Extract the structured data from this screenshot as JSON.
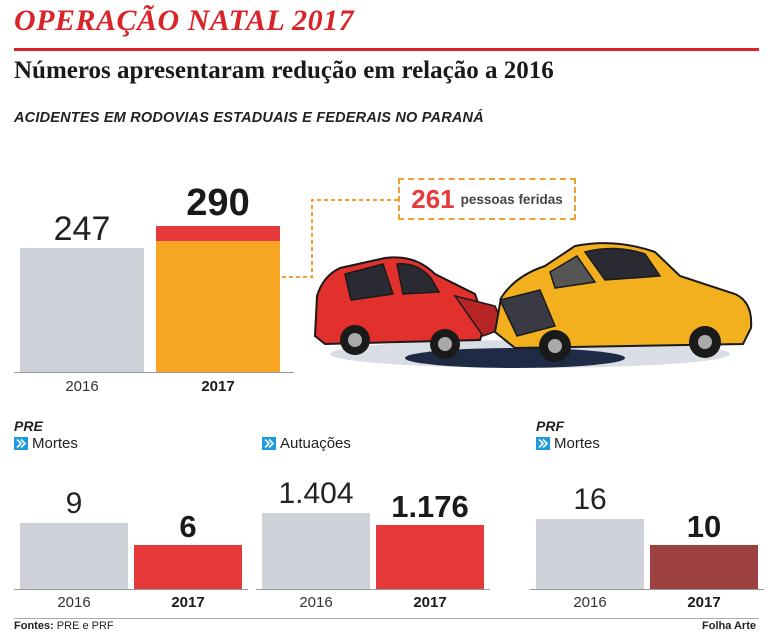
{
  "title": "OPERAÇÃO NATAL 2017",
  "subtitle": "Números apresentaram redução em relação a 2016",
  "section_label": "ACIDENTES EM RODOVIAS ESTADUAIS E FEDERAIS NO PARANÁ",
  "callout": {
    "value": "261",
    "text": "pessoas feridas"
  },
  "colors": {
    "gray": "#cfd1d8",
    "orange": "#f6a623",
    "red": "#e63a3a",
    "dark_red": "#9c4040",
    "accent": "#d9242a",
    "icon_blue": "#1e9be0"
  },
  "chart_data": [
    {
      "type": "bar",
      "id": "acidentes",
      "categories": [
        "2016",
        "2017"
      ],
      "values": [
        247,
        290
      ],
      "value_labels": [
        "247",
        "290"
      ],
      "highlight_portion_2017": 261,
      "group": "",
      "metric": ""
    },
    {
      "type": "bar",
      "id": "pre-mortes",
      "group": "PRE",
      "metric": "Mortes",
      "categories": [
        "2016",
        "2017"
      ],
      "values": [
        9,
        6
      ],
      "value_labels": [
        "9",
        "6"
      ]
    },
    {
      "type": "bar",
      "id": "pre-autuacoes",
      "group": "",
      "metric": "Autuações",
      "categories": [
        "2016",
        "2017"
      ],
      "values": [
        1404,
        1176
      ],
      "value_labels": [
        "1.404",
        "1.176"
      ]
    },
    {
      "type": "bar",
      "id": "prf-mortes",
      "group": "PRF",
      "metric": "Mortes",
      "categories": [
        "2016",
        "2017"
      ],
      "values": [
        16,
        10
      ],
      "value_labels": [
        "16",
        "10"
      ]
    }
  ],
  "footer": {
    "source_label": "Fontes:",
    "source_text": "PRE e PRF",
    "credit": "Folha Arte"
  }
}
